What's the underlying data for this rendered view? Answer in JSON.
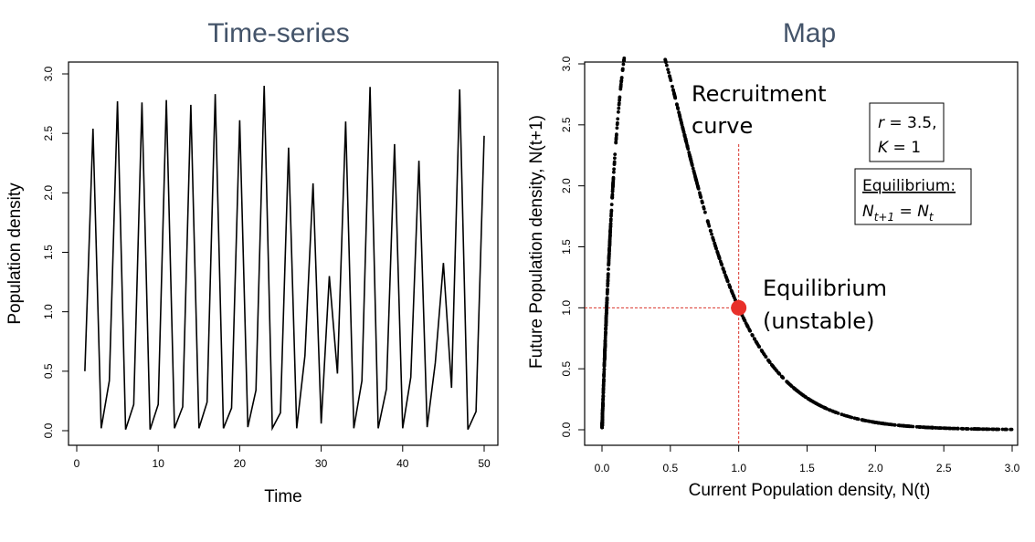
{
  "chart_data": [
    {
      "type": "line",
      "title": "Time-series",
      "xlabel": "Time",
      "ylabel": "Population density",
      "xlim": [
        0,
        50
      ],
      "ylim": [
        0,
        3.0
      ],
      "xticks": [
        "0",
        "10",
        "20",
        "30",
        "40",
        "50"
      ],
      "yticks": [
        "0.0",
        "0.5",
        "1.0",
        "1.5",
        "2.0",
        "2.5",
        "3.0"
      ],
      "grid": false,
      "x": [
        1,
        2,
        3,
        4,
        5,
        6,
        7,
        8,
        9,
        10,
        11,
        12,
        13,
        14,
        15,
        16,
        17,
        18,
        19,
        20,
        21,
        22,
        23,
        24,
        25,
        26,
        27,
        28,
        29,
        30,
        31,
        32,
        33,
        34,
        35,
        36,
        37,
        38,
        39,
        40,
        41,
        42,
        43,
        44,
        45,
        46,
        47,
        48,
        49,
        50
      ],
      "y": [
        0.5,
        2.54,
        0.02,
        0.42,
        2.77,
        0.01,
        0.22,
        2.76,
        0.01,
        0.22,
        2.78,
        0.02,
        0.2,
        2.74,
        0.02,
        0.24,
        2.83,
        0.02,
        0.19,
        2.61,
        0.03,
        0.34,
        2.9,
        0.02,
        0.15,
        2.38,
        0.02,
        0.63,
        2.08,
        0.06,
        1.3,
        0.48,
        2.6,
        0.02,
        0.42,
        2.89,
        0.02,
        0.35,
        2.41,
        0.02,
        0.45,
        2.27,
        0.03,
        0.57,
        1.41,
        0.36,
        2.87,
        0.01,
        0.16,
        2.48
      ]
    },
    {
      "type": "scatter",
      "title": "Map",
      "xlabel": "Current Population density, N(t)",
      "ylabel": "Future Population density, N(t+1)",
      "xlim": [
        0,
        3.0
      ],
      "ylim": [
        0,
        3.0
      ],
      "xticks": [
        "0.0",
        "0.5",
        "1.0",
        "1.5",
        "2.0",
        "2.5",
        "3.0"
      ],
      "yticks": [
        "0.0",
        "0.5",
        "1.0",
        "1.5",
        "2.0",
        "2.5",
        "3.0"
      ],
      "grid": false,
      "model": {
        "r": 3.5,
        "K": 1
      },
      "equilibrium_point": {
        "x": 1.0,
        "y": 1.0,
        "color": "#e8302a"
      },
      "reference_line_color": "#d9342b",
      "annotations": {
        "recruitment": [
          "Recruitment",
          "curve"
        ],
        "equilibrium": [
          "Equilibrium",
          "(unstable)"
        ],
        "params": [
          "r = 3.5,",
          "K = 1"
        ],
        "equilibrium_box_title": "Equilibrium:",
        "equilibrium_box_eq": "N_{t+1} = N_t"
      }
    }
  ]
}
